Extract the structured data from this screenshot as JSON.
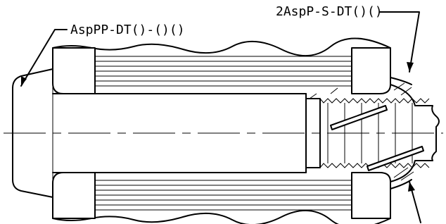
{
  "labels": {
    "left_callout": "AspPP-DT()-()()",
    "right_callout": "2AspP-S-DT()()"
  }
}
